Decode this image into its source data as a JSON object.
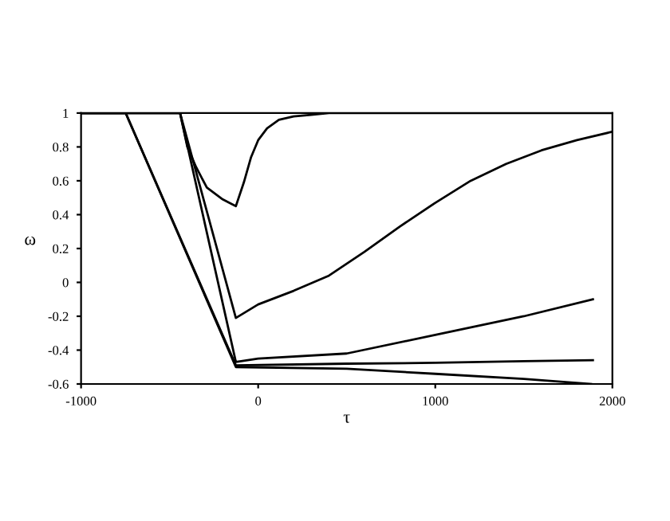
{
  "chart_data": {
    "type": "line",
    "xlabel": "τ",
    "ylabel": "ω",
    "xlim": [
      -1000,
      2000
    ],
    "ylim": [
      -0.6,
      1
    ],
    "xticks": [
      -1000,
      0,
      1000,
      2000
    ],
    "yticks": [
      -0.6,
      -0.4,
      -0.2,
      0,
      0.2,
      0.4,
      0.6,
      0.8,
      1
    ],
    "grid": false,
    "legend": false,
    "marker": "none",
    "line_style": "solid",
    "series": [
      {
        "color": "#000000",
        "x": [
          -1000,
          -441,
          -400,
          -350,
          -290,
          -200,
          -126,
          -81,
          -40,
          0,
          50,
          117,
          200,
          300,
          400,
          2000
        ],
        "values": [
          1,
          1,
          0.8,
          0.68,
          0.56,
          0.49,
          0.45,
          0.59,
          0.74,
          0.84,
          0.91,
          0.96,
          0.98,
          0.99,
          1,
          1
        ]
      },
      {
        "color": "#000000",
        "x": [
          -1000,
          -441,
          -126,
          0,
          200,
          400,
          600,
          800,
          1000,
          1200,
          1400,
          1600,
          1800,
          2000
        ],
        "values": [
          1,
          1,
          -0.21,
          -0.13,
          -0.05,
          0.04,
          0.18,
          0.33,
          0.47,
          0.6,
          0.7,
          0.78,
          0.84,
          0.89
        ]
      },
      {
        "color": "#000000",
        "x": [
          -1000,
          -441,
          -126,
          0,
          500,
          1000,
          1500,
          1890
        ],
        "values": [
          1,
          1,
          -0.47,
          -0.45,
          -0.42,
          -0.31,
          -0.2,
          -0.1
        ]
      },
      {
        "color": "#000000",
        "x": [
          -1000,
          -748,
          -126,
          500,
          1000,
          1500,
          1890
        ],
        "values": [
          1,
          1,
          -0.49,
          -0.48,
          -0.475,
          -0.465,
          -0.46
        ]
      },
      {
        "color": "#000000",
        "x": [
          -1000,
          -748,
          -126,
          500,
          1000,
          1500,
          1880
        ],
        "values": [
          1,
          1,
          -0.5,
          -0.51,
          -0.54,
          -0.57,
          -0.6
        ]
      }
    ]
  }
}
